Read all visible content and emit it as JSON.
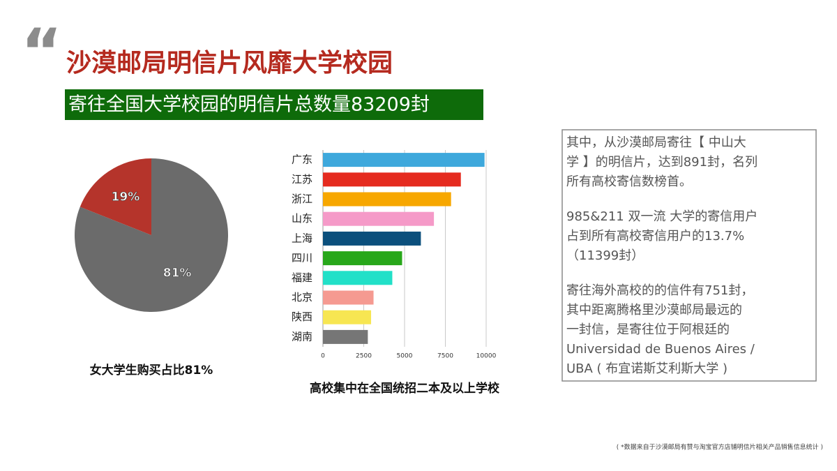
{
  "quote_mark": "“",
  "header": {
    "title": "沙漠邮局明信片风靡大学校园",
    "subtitle": "寄往全国大学校园的明信片总数量83209封"
  },
  "chart_data": [
    {
      "type": "pie",
      "title": "女大学生购买占比81%",
      "values": [
        19,
        81
      ],
      "value_labels": [
        "19%",
        "81%"
      ],
      "colors": [
        "#b5342b",
        "#6b6b6b"
      ]
    },
    {
      "type": "hbar",
      "title": "高校集中在全国统招二本及以上学校",
      "categories": [
        "广东",
        "江苏",
        "浙江",
        "山东",
        "上海",
        "四川",
        "福建",
        "北京",
        "陕西",
        "湖南"
      ],
      "values": [
        9900,
        8450,
        7850,
        6800,
        6000,
        4850,
        4250,
        3100,
        2950,
        2750
      ],
      "colors": [
        "#3ea8dc",
        "#e52b1f",
        "#f7a700",
        "#f59ac8",
        "#0b4f7c",
        "#28a71a",
        "#22e0c8",
        "#f59a91",
        "#f7e652",
        "#767676"
      ],
      "xlim": [
        0,
        10000
      ],
      "xticks": [
        0,
        2500,
        5000,
        7500,
        10000
      ],
      "grid": true
    }
  ],
  "note": {
    "paragraphs": [
      [
        "其中，从沙漠邮局寄往【 中山大",
        "学 】的明信片，达到891封，名列",
        "所有高校寄信数榜首。"
      ],
      [
        "985&211 双一流 大学的寄信用户",
        "占到所有高校寄信用户的13.7%",
        "（11399封）"
      ],
      [
        "寄往海外高校的的信件有751封，",
        "其中距离腾格里沙漠邮局最远的",
        "一封信，是寄往位于阿根廷的",
        "Universidad de Buenos Aires /",
        "UBA ( 布宜诺斯艾利斯大学 )"
      ]
    ]
  },
  "footnote": "( *数据来自于沙漠邮局有赞与淘宝官方店铺明信片相关产品销售信息统计 )"
}
